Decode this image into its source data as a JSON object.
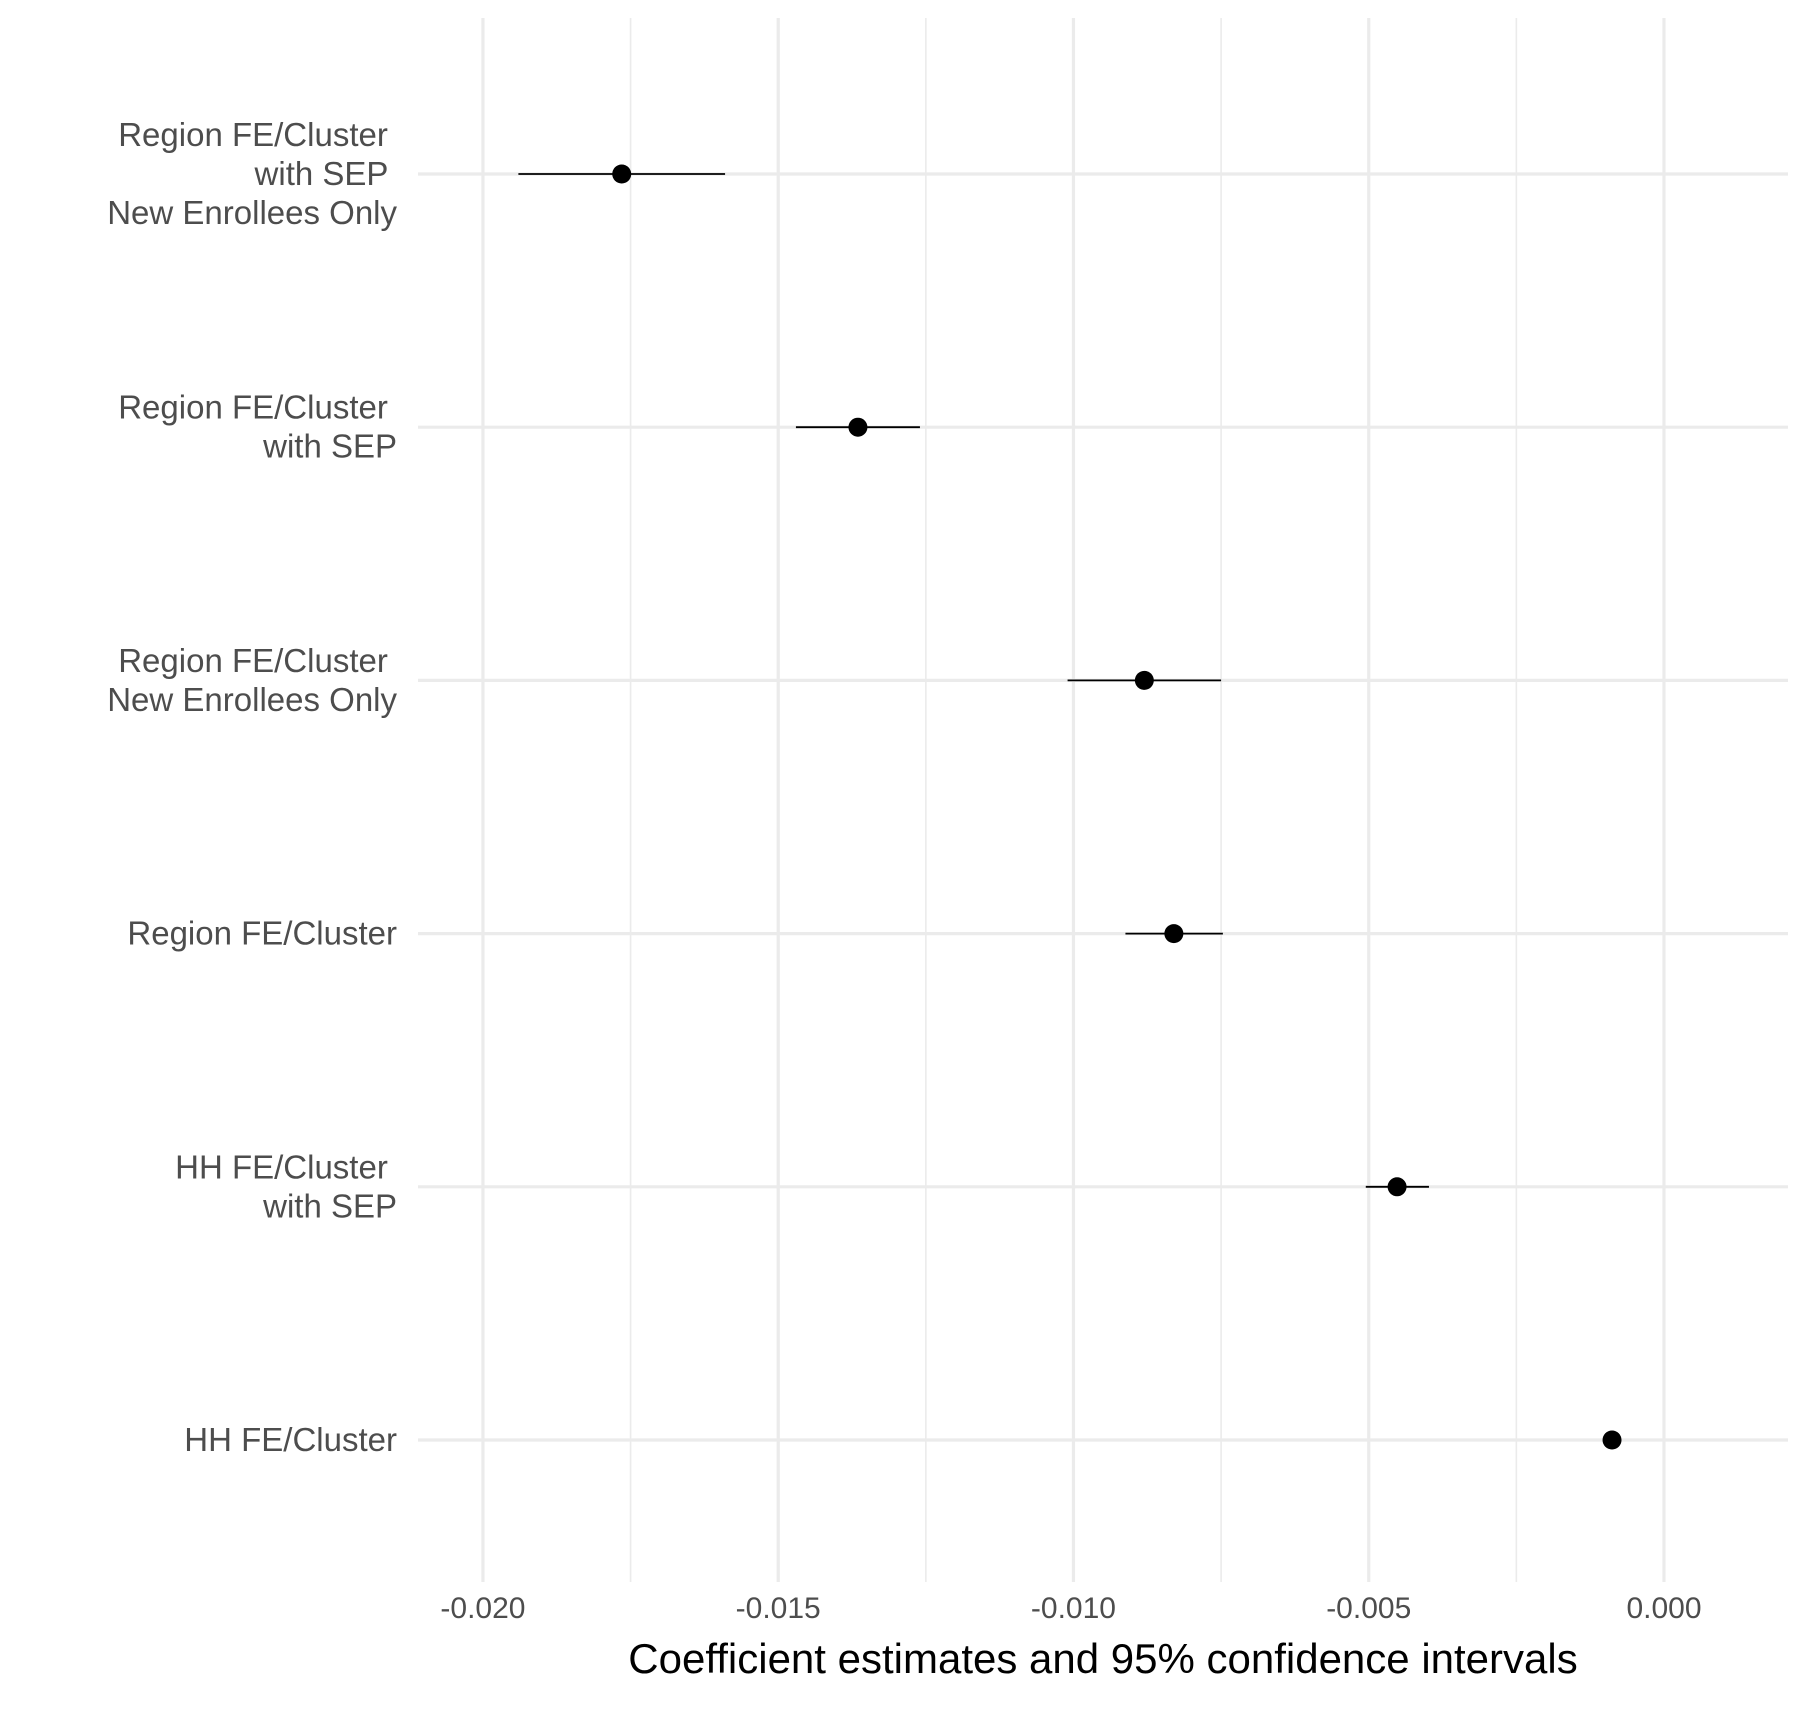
{
  "chart_data": {
    "type": "scatter",
    "subtype": "coefficient-plot",
    "title": "",
    "xlabel": "Coefficient estimates and 95% confidence intervals",
    "ylabel": "",
    "xlim": [
      -0.0211,
      0.0021
    ],
    "x_ticks": [
      -0.02,
      -0.015,
      -0.01,
      -0.005,
      0.0
    ],
    "x_tick_labels": [
      "-0.020",
      "-0.015",
      "-0.010",
      "-0.005",
      "0.000"
    ],
    "grid": true,
    "legend": "none",
    "point_color": "#000000",
    "categories": [
      [
        "Region FE/Cluster ",
        "with SEP ",
        "New Enrollees Only"
      ],
      [
        "Region FE/Cluster ",
        "with SEP"
      ],
      [
        "Region FE/Cluster ",
        "New Enrollees Only"
      ],
      [
        "Region FE/Cluster"
      ],
      [
        "HH FE/Cluster ",
        "with SEP"
      ],
      [
        "HH FE/Cluster"
      ]
    ],
    "estimates": [
      -0.01765,
      -0.01365,
      -0.0088,
      -0.0083,
      -0.00452,
      -0.00088
    ],
    "ci_low": [
      -0.0194,
      -0.0147,
      -0.0101,
      -0.00912,
      -0.00505,
      -0.00102
    ],
    "ci_high": [
      -0.0159,
      -0.0126,
      -0.0075,
      -0.00747,
      -0.00398,
      -0.00074
    ]
  }
}
